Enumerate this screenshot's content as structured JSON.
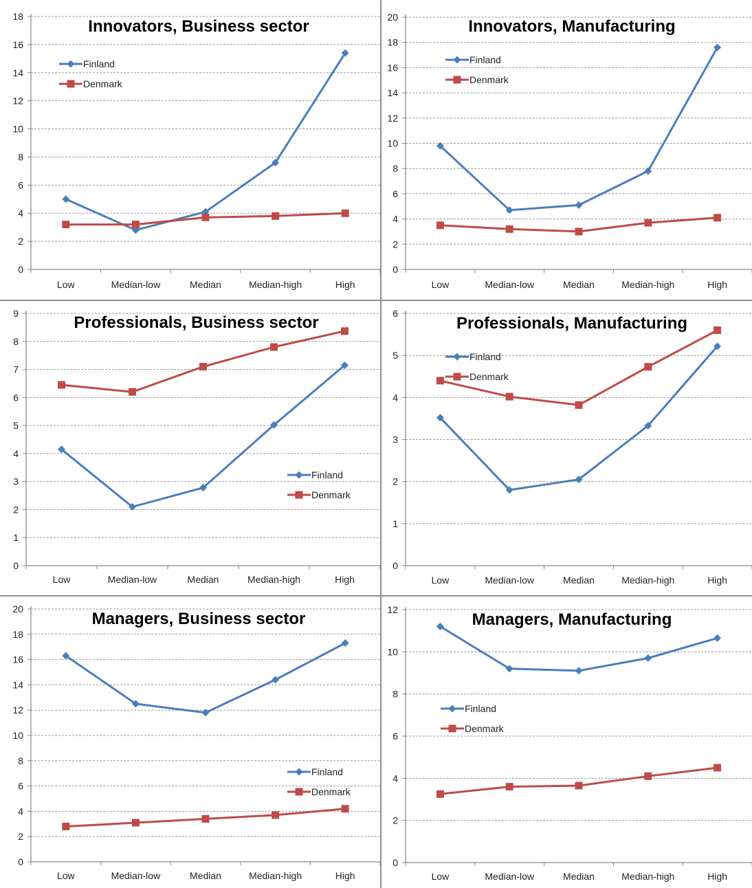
{
  "chart_data": [
    {
      "type": "line",
      "title": "Innovators, Business sector",
      "categories": [
        "Low",
        "Median-low",
        "Median",
        "Median-high",
        "High"
      ],
      "ylim": [
        0,
        18
      ],
      "ytick_step": 2,
      "grid": true,
      "legend_position": "top-left",
      "series": [
        {
          "name": "Finland",
          "values": [
            5.0,
            2.8,
            4.1,
            7.6,
            15.4
          ]
        },
        {
          "name": "Denmark",
          "values": [
            3.2,
            3.2,
            3.7,
            3.8,
            4.0
          ]
        }
      ]
    },
    {
      "type": "line",
      "title": "Innovators, Manufacturing",
      "categories": [
        "Low",
        "Median-low",
        "Median",
        "Median-high",
        "High"
      ],
      "ylim": [
        0,
        20
      ],
      "ytick_step": 2,
      "grid": true,
      "legend_position": "top-left",
      "series": [
        {
          "name": "Finland",
          "values": [
            9.8,
            4.7,
            5.1,
            7.8,
            17.6
          ]
        },
        {
          "name": "Denmark",
          "values": [
            3.5,
            3.2,
            3.0,
            3.7,
            4.1
          ]
        }
      ]
    },
    {
      "type": "line",
      "title": "Professionals, Business sector",
      "categories": [
        "Low",
        "Median-low",
        "Median",
        "Median-high",
        "High"
      ],
      "ylim": [
        0,
        9
      ],
      "ytick_step": 1,
      "grid": true,
      "legend_position": "middle-right",
      "series": [
        {
          "name": "Finland",
          "values": [
            4.15,
            2.1,
            2.78,
            5.02,
            7.15
          ]
        },
        {
          "name": "Denmark",
          "values": [
            6.45,
            6.2,
            7.1,
            7.8,
            8.37
          ]
        }
      ]
    },
    {
      "type": "line",
      "title": "Professionals, Manufacturing",
      "categories": [
        "Low",
        "Median-low",
        "Median",
        "Median-high",
        "High"
      ],
      "ylim": [
        0,
        6
      ],
      "ytick_step": 1,
      "grid": true,
      "legend_position": "top-left",
      "series": [
        {
          "name": "Finland",
          "values": [
            3.52,
            1.8,
            2.05,
            3.33,
            5.22
          ]
        },
        {
          "name": "Denmark",
          "values": [
            4.4,
            4.02,
            3.82,
            4.73,
            5.6
          ]
        }
      ]
    },
    {
      "type": "line",
      "title": "Managers, Business sector",
      "categories": [
        "Low",
        "Median-low",
        "Median",
        "Median-high",
        "High"
      ],
      "ylim": [
        0,
        20
      ],
      "ytick_step": 2,
      "grid": true,
      "legend_position": "bottom-right",
      "series": [
        {
          "name": "Finland",
          "values": [
            16.3,
            12.5,
            11.8,
            14.4,
            17.3
          ]
        },
        {
          "name": "Denmark",
          "values": [
            2.8,
            3.1,
            3.4,
            3.7,
            4.2
          ]
        }
      ]
    },
    {
      "type": "line",
      "title": "Managers, Manufacturing",
      "categories": [
        "Low",
        "Median-low",
        "Median",
        "Median-high",
        "High"
      ],
      "ylim": [
        0,
        12
      ],
      "ytick_step": 2,
      "grid": true,
      "legend_position": "middle-left",
      "series": [
        {
          "name": "Finland",
          "values": [
            11.2,
            9.2,
            9.1,
            9.7,
            10.65
          ]
        },
        {
          "name": "Denmark",
          "values": [
            3.25,
            3.6,
            3.65,
            4.1,
            4.5
          ]
        }
      ]
    }
  ],
  "colors": {
    "finland": "#4a7ebb",
    "denmark": "#be4b48",
    "gridline": "#9a9a9a",
    "axis": "#868686",
    "divider": "#8c8c8c"
  }
}
